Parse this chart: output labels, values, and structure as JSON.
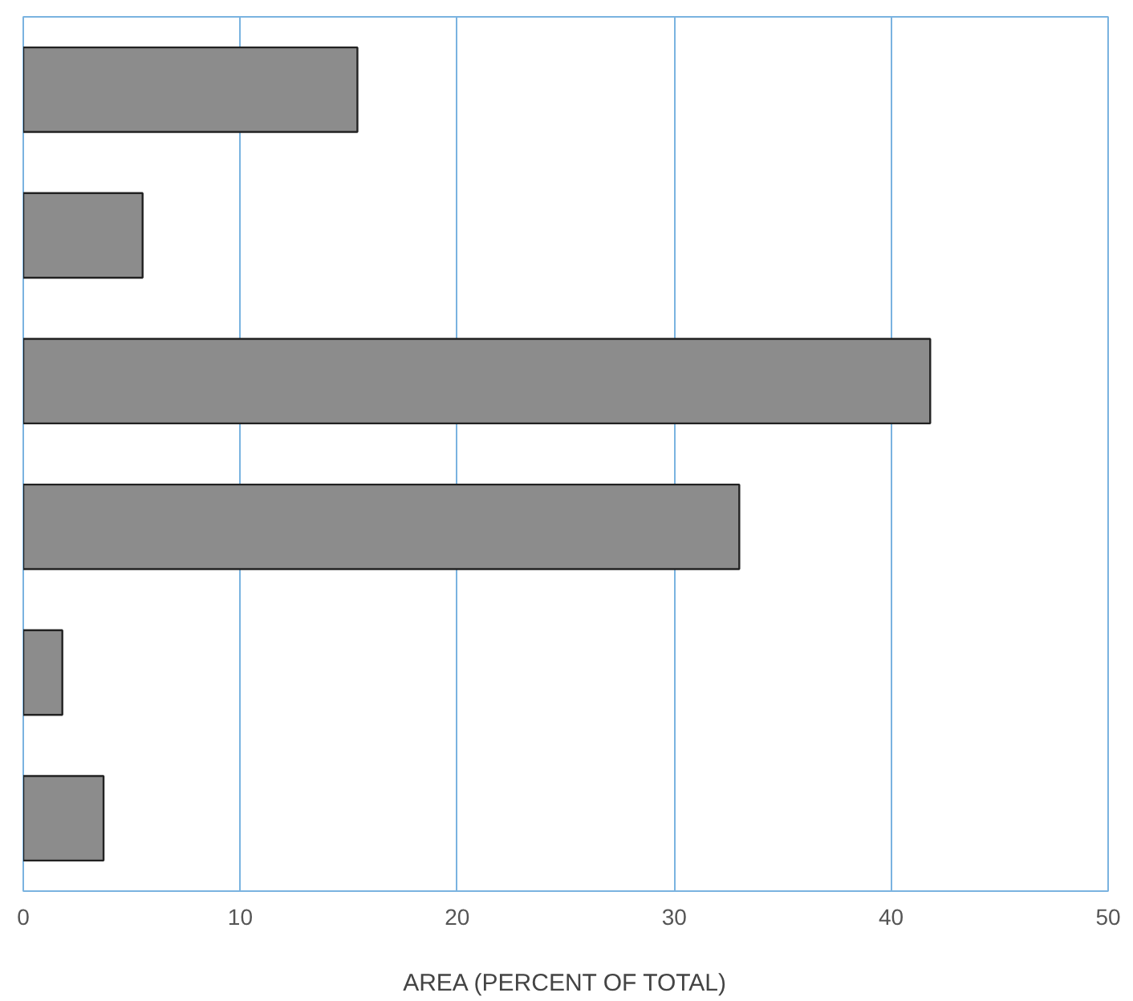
{
  "chart_data": {
    "type": "bar",
    "orientation": "horizontal",
    "categories": [
      null,
      null,
      null,
      null,
      null,
      null
    ],
    "values": [
      15.4,
      5.5,
      41.8,
      33.0,
      1.8,
      3.7
    ],
    "color": "#8c8c8c",
    "xlim": [
      0,
      50
    ],
    "xticks": [
      0,
      10,
      20,
      30,
      40,
      50
    ],
    "xlabel": "AREA (PERCENT OF TOTAL)",
    "grid": "x",
    "tick_labels": "x"
  }
}
